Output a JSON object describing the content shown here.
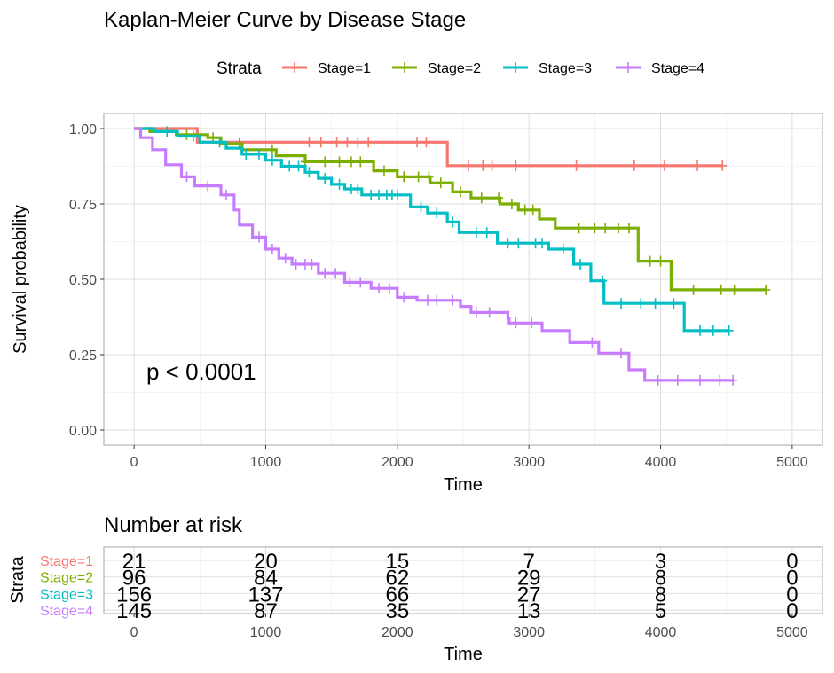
{
  "chart_data": [
    {
      "type": "line",
      "subtype": "kaplan-meier-step",
      "title": "Kaplan-Meier Curve by Disease Stage",
      "xlabel": "Time",
      "ylabel": "Survival probability",
      "xlim": [
        -230,
        5230
      ],
      "ylim": [
        -0.05,
        1.05
      ],
      "xticks": [
        "0",
        "1000",
        "2000",
        "3000",
        "4000",
        "5000"
      ],
      "xtick_values": [
        0,
        1000,
        2000,
        3000,
        4000,
        5000
      ],
      "yticks": [
        "0.00",
        "0.25",
        "0.50",
        "0.75",
        "1.00"
      ],
      "ytick_values": [
        0,
        0.25,
        0.5,
        0.75,
        1.0
      ],
      "grid": true,
      "legend": {
        "title": "Strata",
        "position": "top"
      },
      "annotation": "p < 0.0001",
      "annotation_pos": [
        100,
        0.19
      ],
      "series": [
        {
          "name": "Stage=1",
          "color": "#F8766D",
          "points": [
            [
              0,
              1.0
            ],
            [
              480,
              1.0
            ],
            [
              480,
              0.955
            ],
            [
              2380,
              0.955
            ],
            [
              2380,
              0.877
            ],
            [
              4470,
              0.877
            ]
          ],
          "censor": [
            1330,
            1420,
            1540,
            1620,
            1700,
            1780,
            2150,
            2220,
            2540,
            2650,
            2720,
            2900,
            3360,
            3800,
            4030,
            4280,
            4470
          ]
        },
        {
          "name": "Stage=2",
          "color": "#7CAE00",
          "points": [
            [
              0,
              1.0
            ],
            [
              120,
              1.0
            ],
            [
              120,
              0.99
            ],
            [
              320,
              0.99
            ],
            [
              320,
              0.98
            ],
            [
              560,
              0.98
            ],
            [
              560,
              0.97
            ],
            [
              660,
              0.97
            ],
            [
              660,
              0.95
            ],
            [
              820,
              0.95
            ],
            [
              820,
              0.93
            ],
            [
              1080,
              0.93
            ],
            [
              1080,
              0.91
            ],
            [
              1300,
              0.91
            ],
            [
              1300,
              0.89
            ],
            [
              1820,
              0.89
            ],
            [
              1820,
              0.86
            ],
            [
              2000,
              0.86
            ],
            [
              2000,
              0.84
            ],
            [
              2250,
              0.84
            ],
            [
              2250,
              0.82
            ],
            [
              2420,
              0.82
            ],
            [
              2420,
              0.79
            ],
            [
              2560,
              0.79
            ],
            [
              2560,
              0.77
            ],
            [
              2780,
              0.77
            ],
            [
              2780,
              0.75
            ],
            [
              2920,
              0.75
            ],
            [
              2920,
              0.73
            ],
            [
              3080,
              0.73
            ],
            [
              3080,
              0.7
            ],
            [
              3200,
              0.7
            ],
            [
              3200,
              0.67
            ],
            [
              3830,
              0.67
            ],
            [
              3830,
              0.56
            ],
            [
              4080,
              0.56
            ],
            [
              4080,
              0.465
            ],
            [
              4800,
              0.465
            ]
          ],
          "censor": [
            400,
            600,
            800,
            1050,
            1300,
            1450,
            1560,
            1650,
            1720,
            1900,
            2050,
            2160,
            2240,
            2330,
            2480,
            2640,
            2770,
            2870,
            2970,
            3030,
            3380,
            3500,
            3580,
            3680,
            3760,
            3920,
            4000,
            4250,
            4460,
            4560,
            4800
          ]
        },
        {
          "name": "Stage=3",
          "color": "#00BFC4",
          "points": [
            [
              0,
              1.0
            ],
            [
              150,
              1.0
            ],
            [
              150,
              0.99
            ],
            [
              330,
              0.99
            ],
            [
              330,
              0.975
            ],
            [
              500,
              0.975
            ],
            [
              500,
              0.955
            ],
            [
              700,
              0.955
            ],
            [
              700,
              0.935
            ],
            [
              820,
              0.935
            ],
            [
              820,
              0.915
            ],
            [
              1000,
              0.915
            ],
            [
              1000,
              0.895
            ],
            [
              1120,
              0.895
            ],
            [
              1120,
              0.875
            ],
            [
              1300,
              0.875
            ],
            [
              1300,
              0.855
            ],
            [
              1400,
              0.855
            ],
            [
              1400,
              0.835
            ],
            [
              1500,
              0.835
            ],
            [
              1500,
              0.815
            ],
            [
              1600,
              0.815
            ],
            [
              1600,
              0.8
            ],
            [
              1730,
              0.8
            ],
            [
              1730,
              0.78
            ],
            [
              2100,
              0.78
            ],
            [
              2100,
              0.74
            ],
            [
              2230,
              0.74
            ],
            [
              2230,
              0.72
            ],
            [
              2380,
              0.72
            ],
            [
              2380,
              0.69
            ],
            [
              2470,
              0.69
            ],
            [
              2470,
              0.655
            ],
            [
              2760,
              0.655
            ],
            [
              2760,
              0.62
            ],
            [
              3150,
              0.62
            ],
            [
              3150,
              0.6
            ],
            [
              3340,
              0.6
            ],
            [
              3340,
              0.55
            ],
            [
              3470,
              0.55
            ],
            [
              3470,
              0.495
            ],
            [
              3570,
              0.495
            ],
            [
              3570,
              0.42
            ],
            [
              4180,
              0.42
            ],
            [
              4180,
              0.33
            ],
            [
              4520,
              0.33
            ]
          ],
          "censor": [
            250,
            450,
            650,
            850,
            950,
            1050,
            1180,
            1250,
            1330,
            1450,
            1560,
            1650,
            1700,
            1800,
            1860,
            1920,
            1960,
            2000,
            2180,
            2300,
            2420,
            2600,
            2680,
            2840,
            2920,
            3050,
            3100,
            3260,
            3390,
            3560,
            3700,
            3850,
            3960,
            4100,
            4300,
            4400,
            4520
          ]
        },
        {
          "name": "Stage=4",
          "color": "#C77CFF",
          "points": [
            [
              0,
              1.0
            ],
            [
              50,
              1.0
            ],
            [
              50,
              0.97
            ],
            [
              140,
              0.97
            ],
            [
              140,
              0.93
            ],
            [
              240,
              0.93
            ],
            [
              240,
              0.88
            ],
            [
              360,
              0.88
            ],
            [
              360,
              0.84
            ],
            [
              460,
              0.84
            ],
            [
              460,
              0.81
            ],
            [
              660,
              0.81
            ],
            [
              660,
              0.78
            ],
            [
              760,
              0.78
            ],
            [
              760,
              0.73
            ],
            [
              800,
              0.73
            ],
            [
              800,
              0.68
            ],
            [
              900,
              0.68
            ],
            [
              900,
              0.64
            ],
            [
              1000,
              0.64
            ],
            [
              1000,
              0.6
            ],
            [
              1100,
              0.6
            ],
            [
              1100,
              0.57
            ],
            [
              1200,
              0.57
            ],
            [
              1200,
              0.55
            ],
            [
              1400,
              0.55
            ],
            [
              1400,
              0.52
            ],
            [
              1600,
              0.52
            ],
            [
              1600,
              0.49
            ],
            [
              1800,
              0.49
            ],
            [
              1800,
              0.47
            ],
            [
              2000,
              0.47
            ],
            [
              2000,
              0.44
            ],
            [
              2150,
              0.44
            ],
            [
              2150,
              0.43
            ],
            [
              2480,
              0.43
            ],
            [
              2480,
              0.41
            ],
            [
              2560,
              0.41
            ],
            [
              2560,
              0.39
            ],
            [
              2840,
              0.39
            ],
            [
              2840,
              0.37
            ],
            [
              2850,
              0.37
            ],
            [
              2850,
              0.355
            ],
            [
              3100,
              0.355
            ],
            [
              3100,
              0.33
            ],
            [
              3310,
              0.33
            ],
            [
              3310,
              0.29
            ],
            [
              3530,
              0.29
            ],
            [
              3530,
              0.255
            ],
            [
              3760,
              0.255
            ],
            [
              3760,
              0.2
            ],
            [
              3880,
              0.2
            ],
            [
              3880,
              0.165
            ],
            [
              4550,
              0.165
            ]
          ],
          "censor": [
            400,
            560,
            700,
            950,
            1050,
            1150,
            1230,
            1300,
            1350,
            1450,
            1530,
            1640,
            1720,
            1860,
            1940,
            2050,
            2230,
            2300,
            2420,
            2600,
            2700,
            2900,
            3020,
            3480,
            3700,
            3980,
            4130,
            4300,
            4450,
            4550
          ]
        }
      ]
    },
    {
      "type": "table",
      "title": "Number at risk",
      "xlabel": "Time",
      "ylabel": "Strata",
      "xlim": [
        -230,
        5230
      ],
      "xticks": [
        "0",
        "1000",
        "2000",
        "3000",
        "4000",
        "5000"
      ],
      "xtick_values": [
        0,
        1000,
        2000,
        3000,
        4000,
        5000
      ],
      "rows": [
        {
          "name": "Stage=1",
          "color": "#F8766D",
          "values": [
            "21",
            "20",
            "15",
            "7",
            "3",
            "0"
          ]
        },
        {
          "name": "Stage=2",
          "color": "#7CAE00",
          "values": [
            "96",
            "84",
            "62",
            "29",
            "8",
            "0"
          ]
        },
        {
          "name": "Stage=3",
          "color": "#00BFC4",
          "values": [
            "156",
            "137",
            "66",
            "27",
            "8",
            "0"
          ]
        },
        {
          "name": "Stage=4",
          "color": "#C77CFF",
          "values": [
            "145",
            "87",
            "35",
            "13",
            "5",
            "0"
          ]
        }
      ]
    }
  ]
}
